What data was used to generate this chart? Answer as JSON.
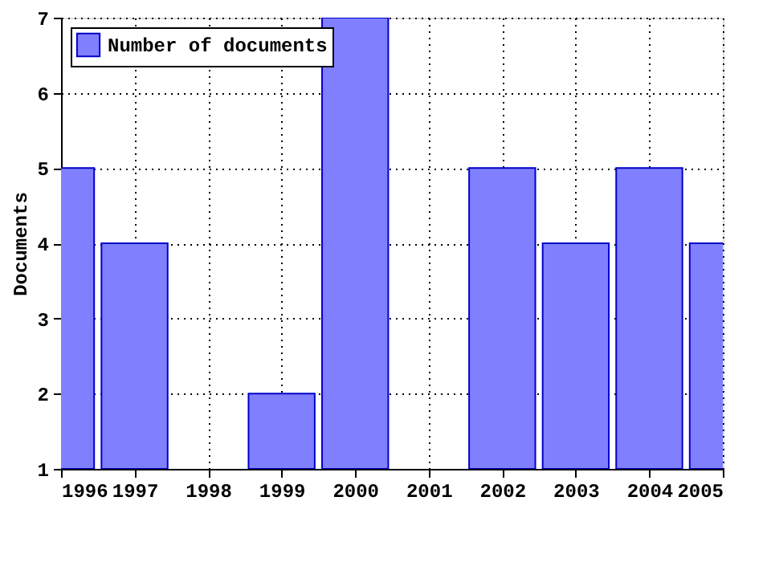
{
  "chart_data": {
    "type": "bar",
    "ylabel": "Documents",
    "x": [
      1996,
      1997,
      1998,
      1999,
      2000,
      2001,
      2002,
      2003,
      2004,
      2005
    ],
    "series": [
      {
        "name": "Number of documents",
        "color": "#8080ff",
        "values": [
          5,
          4,
          null,
          2,
          7,
          null,
          5,
          4,
          5,
          4
        ]
      }
    ],
    "xlim": [
      1996,
      2005
    ],
    "xticks": [
      1996,
      1997,
      1998,
      1999,
      2000,
      2001,
      2002,
      2003,
      2004,
      2005
    ],
    "ylim": [
      1,
      7
    ],
    "yticks": [
      1,
      2,
      3,
      4,
      5,
      6,
      7
    ],
    "grid": true,
    "legend": "top left"
  }
}
